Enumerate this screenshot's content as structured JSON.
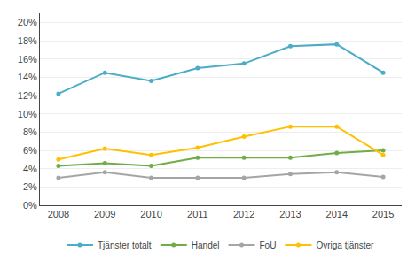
{
  "chart_data": {
    "type": "line",
    "x": [
      2008,
      2009,
      2010,
      2011,
      2012,
      2013,
      2014,
      2015
    ],
    "series": [
      {
        "name": "Tjänster totalt",
        "color": "#4bacc6",
        "marker": "circle",
        "values": [
          0.122,
          0.145,
          0.136,
          0.15,
          0.155,
          0.174,
          0.176,
          0.145
        ]
      },
      {
        "name": "Handel",
        "color": "#70ad47",
        "marker": "circle",
        "values": [
          0.043,
          0.046,
          0.043,
          0.052,
          0.052,
          0.052,
          0.057,
          0.06
        ]
      },
      {
        "name": "FoU",
        "color": "#a5a5a5",
        "marker": "circle",
        "values": [
          0.03,
          0.036,
          0.03,
          0.03,
          0.03,
          0.034,
          0.036,
          0.031
        ]
      },
      {
        "name": "Övriga tjänster",
        "color": "#ffc000",
        "marker": "circle",
        "values": [
          0.05,
          0.062,
          0.055,
          0.063,
          0.075,
          0.086,
          0.086,
          0.055
        ]
      }
    ],
    "xlim": [
      2007.6,
      2015.4
    ],
    "xticks": [
      2008,
      2009,
      2010,
      2011,
      2012,
      2013,
      2014,
      2015
    ],
    "ylim": [
      0,
      0.21
    ],
    "yticks": [
      {
        "value": 0.0,
        "label": "0%"
      },
      {
        "value": 0.02,
        "label": "2%"
      },
      {
        "value": 0.04,
        "label": "4%"
      },
      {
        "value": 0.06,
        "label": "6%"
      },
      {
        "value": 0.08,
        "label": "8%"
      },
      {
        "value": 0.1,
        "label": "10%"
      },
      {
        "value": 0.12,
        "label": "12%"
      },
      {
        "value": 0.14,
        "label": "14%"
      },
      {
        "value": 0.16,
        "label": "16%"
      },
      {
        "value": 0.18,
        "label": "18%"
      },
      {
        "value": 0.2,
        "label": "20%"
      }
    ],
    "grid": true,
    "legend": "bottom"
  }
}
